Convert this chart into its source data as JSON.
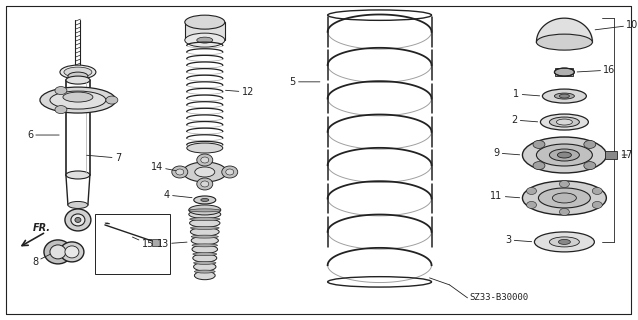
{
  "bg_color": "#ffffff",
  "line_color": "#222222",
  "diagram_code": "SZ33-B30000",
  "fr_label": "FR."
}
